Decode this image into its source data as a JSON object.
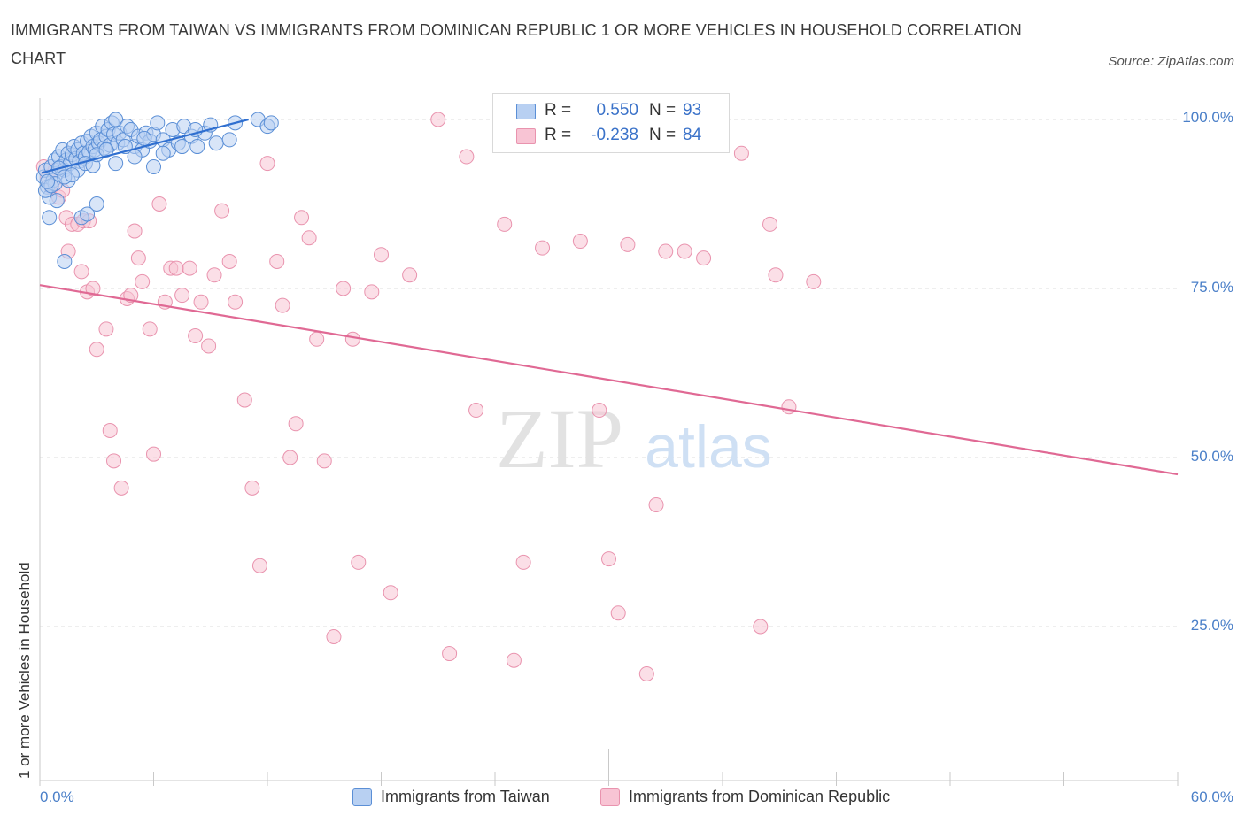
{
  "title": "IMMIGRANTS FROM TAIWAN VS IMMIGRANTS FROM DOMINICAN REPUBLIC 1 OR MORE VEHICLES IN HOUSEHOLD CORRELATION CHART",
  "source": "Source: ZipAtlas.com",
  "watermark": {
    "zip": "ZIP",
    "atlas": "atlas"
  },
  "legend": {
    "series1": {
      "r_label": "R =",
      "r_value": "0.550",
      "n_label": "N =",
      "n_value": "93"
    },
    "series2": {
      "r_label": "R =",
      "r_value": "-0.238",
      "n_label": "N =",
      "n_value": "84"
    }
  },
  "bottom_legend": {
    "series1": "Immigrants from Taiwan",
    "series2": "Immigrants from Dominican Republic"
  },
  "colors": {
    "taiwan_fill": "#b8d0f2",
    "taiwan_stroke": "#5b8fd6",
    "taiwan_line": "#2f6fd0",
    "dr_fill": "#f8c4d4",
    "dr_stroke": "#e993ae",
    "dr_line": "#e06994",
    "grid": "#dedede",
    "tick_text": "#4a7fc8"
  },
  "chart_data": {
    "type": "scatter",
    "title": "IMMIGRANTS FROM TAIWAN VS IMMIGRANTS FROM DOMINICAN REPUBLIC 1 OR MORE VEHICLES IN HOUSEHOLD CORRELATION CHART",
    "xlabel": "",
    "ylabel": "1 or more Vehicles in Household",
    "xlim": [
      0,
      60
    ],
    "ylim": [
      0,
      103
    ],
    "x_tick_labels": [
      {
        "value": 0,
        "label": "0.0%"
      },
      {
        "value": 60,
        "label": "60.0%"
      }
    ],
    "y_tick_labels": [
      {
        "value": 100,
        "label": "100.0%"
      },
      {
        "value": 75,
        "label": "75.0%"
      },
      {
        "value": 50,
        "label": "50.0%"
      },
      {
        "value": 25,
        "label": "25.0%"
      }
    ],
    "y_gridlines": [
      100,
      75,
      50,
      25
    ],
    "series": [
      {
        "name": "Immigrants from Taiwan",
        "r": 0.55,
        "n": 93,
        "trend": {
          "x": [
            0.1,
            11.0
          ],
          "y": [
            92.1,
            100.0
          ]
        },
        "points": [
          [
            0.2,
            91.5
          ],
          [
            0.3,
            92.5
          ],
          [
            0.4,
            90.0
          ],
          [
            0.5,
            88.5
          ],
          [
            0.5,
            85.5
          ],
          [
            0.6,
            93.0
          ],
          [
            0.7,
            91.0
          ],
          [
            0.8,
            94.0
          ],
          [
            0.9,
            92.0
          ],
          [
            1.0,
            94.5
          ],
          [
            1.1,
            93.0
          ],
          [
            1.2,
            95.5
          ],
          [
            1.3,
            92.5
          ],
          [
            1.4,
            94.0
          ],
          [
            1.5,
            95.0
          ],
          [
            1.6,
            93.5
          ],
          [
            1.7,
            94.8
          ],
          [
            1.8,
            96.0
          ],
          [
            1.9,
            94.2
          ],
          [
            2.0,
            95.5
          ],
          [
            2.1,
            93.8
          ],
          [
            2.2,
            96.5
          ],
          [
            2.3,
            95.0
          ],
          [
            2.4,
            94.5
          ],
          [
            2.5,
            96.8
          ],
          [
            2.6,
            95.2
          ],
          [
            2.7,
            97.5
          ],
          [
            2.8,
            96.0
          ],
          [
            2.9,
            95.5
          ],
          [
            3.0,
            98.0
          ],
          [
            3.1,
            96.5
          ],
          [
            3.2,
            97.0
          ],
          [
            3.3,
            99.0
          ],
          [
            3.4,
            95.8
          ],
          [
            3.5,
            97.5
          ],
          [
            3.6,
            98.5
          ],
          [
            3.7,
            96.2
          ],
          [
            3.8,
            99.5
          ],
          [
            3.9,
            97.8
          ],
          [
            4.0,
            100.0
          ],
          [
            4.1,
            96.5
          ],
          [
            4.2,
            98.0
          ],
          [
            4.4,
            97.0
          ],
          [
            4.6,
            99.0
          ],
          [
            4.8,
            98.5
          ],
          [
            5.0,
            96.0
          ],
          [
            5.2,
            97.5
          ],
          [
            5.4,
            95.5
          ],
          [
            5.6,
            98.0
          ],
          [
            5.8,
            96.8
          ],
          [
            6.0,
            97.8
          ],
          [
            6.2,
            99.5
          ],
          [
            6.5,
            97.0
          ],
          [
            6.8,
            95.5
          ],
          [
            7.0,
            98.5
          ],
          [
            7.3,
            96.5
          ],
          [
            7.6,
            99.0
          ],
          [
            8.0,
            97.5
          ],
          [
            8.3,
            96.0
          ],
          [
            8.7,
            98.0
          ],
          [
            9.3,
            96.5
          ],
          [
            10.0,
            97.0
          ],
          [
            10.3,
            99.5
          ],
          [
            11.5,
            100.0
          ],
          [
            12.0,
            99.0
          ],
          [
            12.2,
            99.5
          ],
          [
            0.3,
            89.5
          ],
          [
            0.8,
            90.5
          ],
          [
            1.5,
            91.0
          ],
          [
            2.0,
            92.5
          ],
          [
            0.6,
            90.2
          ],
          [
            1.0,
            92.8
          ],
          [
            1.3,
            91.5
          ],
          [
            2.4,
            93.5
          ],
          [
            2.8,
            93.2
          ],
          [
            3.0,
            94.8
          ],
          [
            4.0,
            93.5
          ],
          [
            5.0,
            94.5
          ],
          [
            6.0,
            93.0
          ],
          [
            6.5,
            95.0
          ],
          [
            2.2,
            85.5
          ],
          [
            3.0,
            87.5
          ],
          [
            2.5,
            86.0
          ],
          [
            1.3,
            79.0
          ],
          [
            0.4,
            90.8
          ],
          [
            0.9,
            88.0
          ],
          [
            1.7,
            91.8
          ],
          [
            3.5,
            95.5
          ],
          [
            4.5,
            96.0
          ],
          [
            5.5,
            97.2
          ],
          [
            7.5,
            96.0
          ],
          [
            8.2,
            98.5
          ],
          [
            9.0,
            99.2
          ]
        ]
      },
      {
        "name": "Immigrants from Dominican Republic",
        "r": -0.238,
        "n": 84,
        "trend": {
          "x": [
            0.0,
            60.0
          ],
          "y": [
            75.5,
            47.5
          ]
        },
        "points": [
          [
            0.2,
            93.0
          ],
          [
            0.4,
            91.5
          ],
          [
            0.6,
            90.0
          ],
          [
            0.8,
            92.5
          ],
          [
            1.0,
            88.5
          ],
          [
            1.2,
            89.5
          ],
          [
            1.4,
            85.5
          ],
          [
            1.7,
            84.5
          ],
          [
            2.0,
            84.5
          ],
          [
            2.3,
            85.0
          ],
          [
            2.6,
            85.0
          ],
          [
            2.2,
            77.5
          ],
          [
            2.5,
            74.5
          ],
          [
            2.8,
            75.0
          ],
          [
            1.5,
            80.5
          ],
          [
            3.0,
            66.0
          ],
          [
            3.5,
            69.0
          ],
          [
            3.7,
            54.0
          ],
          [
            3.9,
            49.5
          ],
          [
            4.3,
            45.5
          ],
          [
            4.6,
            73.5
          ],
          [
            4.8,
            74.0
          ],
          [
            5.0,
            83.5
          ],
          [
            5.2,
            79.5
          ],
          [
            5.4,
            76.0
          ],
          [
            5.8,
            69.0
          ],
          [
            6.0,
            50.5
          ],
          [
            6.3,
            87.5
          ],
          [
            6.6,
            73.0
          ],
          [
            6.9,
            78.0
          ],
          [
            7.2,
            78.0
          ],
          [
            7.5,
            74.0
          ],
          [
            7.9,
            78.0
          ],
          [
            8.2,
            68.0
          ],
          [
            8.5,
            73.0
          ],
          [
            8.9,
            66.5
          ],
          [
            9.2,
            77.0
          ],
          [
            9.6,
            86.5
          ],
          [
            10.0,
            79.0
          ],
          [
            10.3,
            73.0
          ],
          [
            10.8,
            58.5
          ],
          [
            11.2,
            45.5
          ],
          [
            11.6,
            34.0
          ],
          [
            12.0,
            93.5
          ],
          [
            12.5,
            79.0
          ],
          [
            12.8,
            72.5
          ],
          [
            13.2,
            50.0
          ],
          [
            13.5,
            55.0
          ],
          [
            13.8,
            85.5
          ],
          [
            14.2,
            82.5
          ],
          [
            14.6,
            67.5
          ],
          [
            15.0,
            49.5
          ],
          [
            15.5,
            23.5
          ],
          [
            16.0,
            75.0
          ],
          [
            16.5,
            67.5
          ],
          [
            16.8,
            34.5
          ],
          [
            17.5,
            74.5
          ],
          [
            18.0,
            80.0
          ],
          [
            18.5,
            30.0
          ],
          [
            19.5,
            77.0
          ],
          [
            21.0,
            100.0
          ],
          [
            21.6,
            21.0
          ],
          [
            22.5,
            94.5
          ],
          [
            23.0,
            57.0
          ],
          [
            24.5,
            84.5
          ],
          [
            25.0,
            20.0
          ],
          [
            25.5,
            34.5
          ],
          [
            26.5,
            81.0
          ],
          [
            28.5,
            82.0
          ],
          [
            29.5,
            57.0
          ],
          [
            30.0,
            35.0
          ],
          [
            30.5,
            27.0
          ],
          [
            31.0,
            81.5
          ],
          [
            32.0,
            18.0
          ],
          [
            32.5,
            43.0
          ],
          [
            33.0,
            80.5
          ],
          [
            34.0,
            80.5
          ],
          [
            35.0,
            79.5
          ],
          [
            37.0,
            95.0
          ],
          [
            38.0,
            25.0
          ],
          [
            38.5,
            84.5
          ],
          [
            38.8,
            77.0
          ],
          [
            39.5,
            57.5
          ],
          [
            40.8,
            76.0
          ]
        ]
      }
    ]
  }
}
